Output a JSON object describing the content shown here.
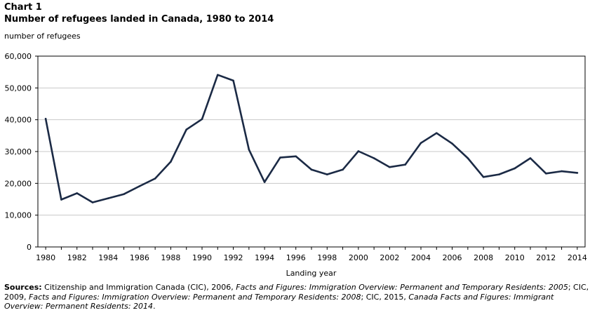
{
  "header": {
    "chart_label": "Chart 1",
    "title": "Number of refugees landed in Canada, 1980 to 2014"
  },
  "chart_data": {
    "type": "line",
    "title": "Number of refugees landed in Canada, 1980 to 2014",
    "ylabel": "number of refugees",
    "xlabel": "Landing year",
    "ylim": [
      0,
      60000
    ],
    "yticks": [
      0,
      10000,
      20000,
      30000,
      40000,
      50000,
      60000
    ],
    "ytick_labels": [
      "0",
      "10,000",
      "20,000",
      "30,000",
      "40,000",
      "50,000",
      "60,000"
    ],
    "xticks": [
      1980,
      1982,
      1984,
      1986,
      1988,
      1990,
      1992,
      1994,
      1996,
      1998,
      2000,
      2002,
      2004,
      2006,
      2008,
      2010,
      2012,
      2014
    ],
    "xlim": [
      1979.5,
      2014.5
    ],
    "grid": true,
    "x": [
      1980,
      1981,
      1982,
      1983,
      1984,
      1985,
      1986,
      1987,
      1988,
      1989,
      1990,
      1991,
      1992,
      1993,
      1994,
      1995,
      1996,
      1997,
      1998,
      1999,
      2000,
      2001,
      2002,
      2003,
      2004,
      2005,
      2006,
      2007,
      2008,
      2009,
      2010,
      2011,
      2012,
      2013,
      2014
    ],
    "series": [
      {
        "values": [
          40300,
          14900,
          16900,
          14000,
          15300,
          16600,
          19100,
          21500,
          26800,
          36900,
          40200,
          54100,
          52300,
          30600,
          20400,
          28100,
          28500,
          24300,
          22800,
          24300,
          30100,
          27900,
          25100,
          25900,
          32700,
          35800,
          32500,
          27900,
          22000,
          22800,
          24700,
          27900,
          23100,
          23800,
          23300
        ],
        "color": "#1b2a45"
      }
    ]
  },
  "footer": {
    "sources_label": "Sources:",
    "sources_parts": [
      " Citizenship and Immigration Canada (CIC), 2006, ",
      "Facts and Figures: Immigration Overview: Permanent and Temporary Residents: 2005",
      "; CIC, 2009, ",
      "Facts and Figures: Immigration Overview: Permanent and Temporary Residents: 2008",
      "; CIC, 2015, ",
      "Canada Facts and Figures: Immigrant Overview: Permanent Residents: 2014",
      "."
    ]
  }
}
